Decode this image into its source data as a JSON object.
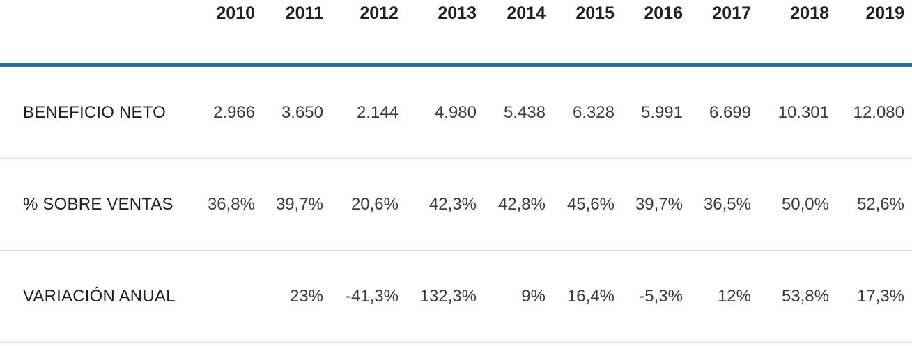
{
  "table": {
    "years": [
      "2010",
      "2011",
      "2012",
      "2013",
      "2014",
      "2015",
      "2016",
      "2017",
      "2018",
      "2019"
    ],
    "rows": [
      {
        "label": "BENEFICIO NETO",
        "values": [
          "2.966",
          "3.650",
          "2.144",
          "4.980",
          "5.438",
          "6.328",
          "5.991",
          "6.699",
          "10.301",
          "12.080"
        ]
      },
      {
        "label": "% SOBRE VENTAS",
        "values": [
          "36,8%",
          "39,7%",
          "20,6%",
          "42,3%",
          "42,8%",
          "45,6%",
          "39,7%",
          "36,5%",
          "50,0%",
          "52,6%"
        ]
      },
      {
        "label": "VARIACIÓN ANUAL",
        "values": [
          "",
          "23%",
          "-41,3%",
          "132,3%",
          "9%",
          "16,4%",
          "-5,3%",
          "12%",
          "53,8%",
          "17,3%"
        ]
      }
    ],
    "colors": {
      "header_rule": "#2f6e9f",
      "row_rule": "#dcdcdc",
      "header_text": "#212121",
      "label_text": "#1e1e1e",
      "value_text": "#3a3a3a"
    }
  },
  "chart_data": {
    "type": "table",
    "title": "",
    "categories": [
      "2010",
      "2011",
      "2012",
      "2013",
      "2014",
      "2015",
      "2016",
      "2017",
      "2018",
      "2019"
    ],
    "series": [
      {
        "name": "BENEFICIO NETO",
        "values": [
          2966,
          3650,
          2144,
          4980,
          5438,
          6328,
          5991,
          6699,
          10301,
          12080
        ]
      },
      {
        "name": "% SOBRE VENTAS",
        "values": [
          36.8,
          39.7,
          20.6,
          42.3,
          42.8,
          45.6,
          39.7,
          36.5,
          50.0,
          52.6
        ]
      },
      {
        "name": "VARIACIÓN ANUAL",
        "values": [
          null,
          23,
          -41.3,
          132.3,
          9,
          16.4,
          -5.3,
          12,
          53.8,
          17.3
        ]
      }
    ],
    "layout": {
      "header_rule_color": "#2f6e9f",
      "row_separator_color": "#dcdcdc",
      "value_alignment": "right"
    }
  }
}
